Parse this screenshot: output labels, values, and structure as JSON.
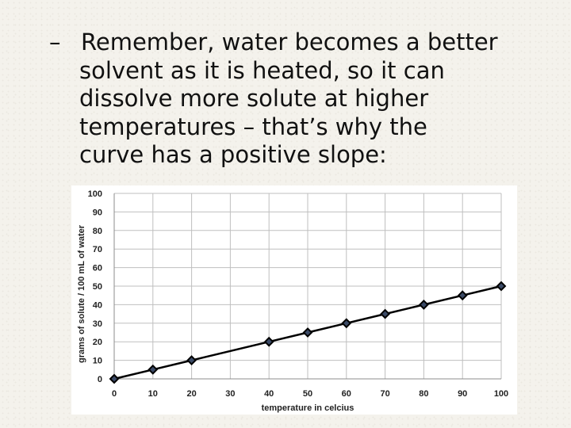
{
  "slide": {
    "bullet_dash": "–",
    "text_lines": [
      "Remember, water becomes a better",
      "solvent as it is heated, so it can",
      "dissolve more solute at higher",
      "temperatures – that’s why the",
      "curve has a positive slope:"
    ]
  },
  "chart_data": {
    "type": "line",
    "title": "",
    "xlabel": "temperature in celcius",
    "ylabel": "grams of solute / 100 mL of water",
    "xlim": [
      0,
      100
    ],
    "ylim": [
      0,
      100
    ],
    "xticks": [
      "0",
      "10",
      "20",
      "30",
      "40",
      "50",
      "60",
      "70",
      "80",
      "90",
      "100"
    ],
    "yticks": [
      "0",
      "10",
      "20",
      "30",
      "40",
      "50",
      "60",
      "70",
      "80",
      "90",
      "100"
    ],
    "grid": true,
    "legend": "none",
    "series": [
      {
        "x": [
          0,
          10,
          20,
          40,
          50,
          60,
          70,
          80,
          90,
          100
        ],
        "y": [
          0,
          5,
          10,
          20,
          25,
          30,
          35,
          40,
          45,
          50
        ]
      }
    ],
    "colors": {
      "line": "#000000",
      "marker_fill": "#3b4a66",
      "grid": "#bfbfbf"
    }
  }
}
